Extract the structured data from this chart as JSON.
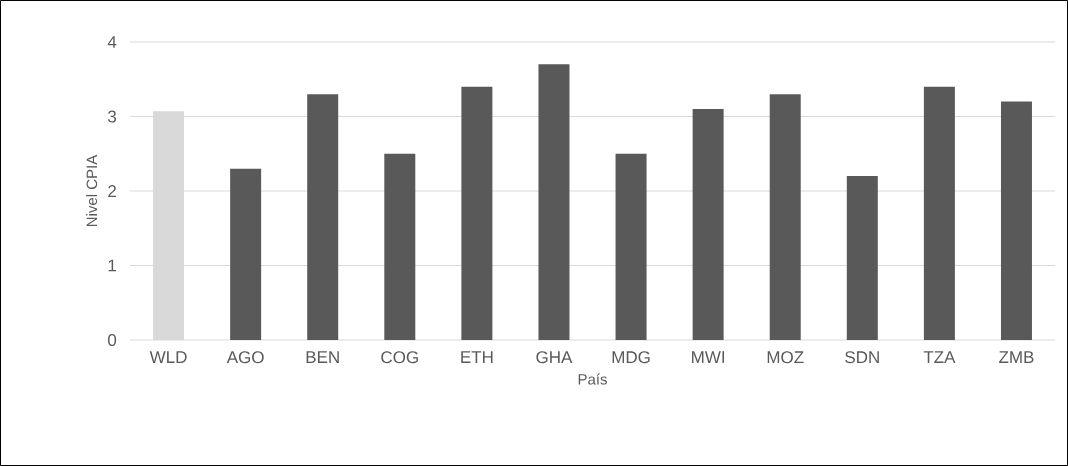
{
  "chart_data": {
    "type": "bar",
    "xlabel": "País",
    "ylabel": "Nivel CPIA",
    "categories": [
      "WLD",
      "AGO",
      "BEN",
      "COG",
      "ETH",
      "GHA",
      "MDG",
      "MWI",
      "MOZ",
      "SDN",
      "TZA",
      "ZMB"
    ],
    "values": [
      3.07,
      2.3,
      3.3,
      2.5,
      3.4,
      3.7,
      2.5,
      3.1,
      3.3,
      2.2,
      3.4,
      3.2
    ],
    "colors": [
      "#d9d9d9",
      "#595959",
      "#595959",
      "#595959",
      "#595959",
      "#595959",
      "#595959",
      "#595959",
      "#595959",
      "#595959",
      "#595959",
      "#595959"
    ],
    "ylim": [
      0,
      4
    ],
    "yticks": [
      0,
      1,
      2,
      3,
      4
    ],
    "grid": "y"
  }
}
